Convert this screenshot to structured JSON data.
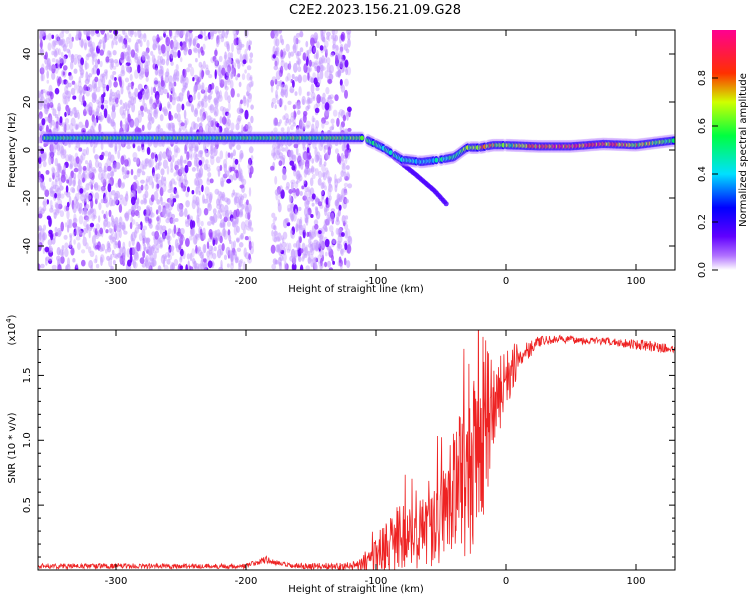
{
  "title": "C2E2.2023.156.21.09.G28",
  "chart_data": [
    {
      "type": "heatmap",
      "xlabel": "Height of straight line (km)",
      "ylabel": "Frequency (Hz)",
      "xlim": [
        -360,
        130
      ],
      "ylim": [
        -50,
        50
      ],
      "x_ticks": [
        -300,
        -200,
        -100,
        0,
        100
      ],
      "y_ticks": [
        -40,
        -20,
        0,
        20,
        40
      ],
      "colorbar": {
        "label": "Normalized spectral amplitude",
        "range": [
          0,
          1
        ],
        "ticks": [
          "0.0",
          "0.2",
          "0.4",
          "0.6",
          "0.8"
        ],
        "colors": [
          "#ffffff",
          "#8000ff",
          "#0000ff",
          "#00ffff",
          "#00ff00",
          "#ffff00",
          "#ff0000",
          "#ff00a0"
        ]
      },
      "noise_regions_km": [
        [
          -360,
          -195
        ],
        [
          -180,
          -120
        ]
      ],
      "ridge": {
        "x": [
          -355,
          -300,
          -250,
          -200,
          -150,
          -110,
          -95,
          -80,
          -65,
          -50,
          -40,
          -30,
          -20,
          -10,
          0,
          25,
          50,
          75,
          100,
          130
        ],
        "freq": [
          5,
          5,
          5,
          5,
          5,
          5,
          1,
          -4,
          -5,
          -4,
          -3,
          1,
          1,
          2,
          2,
          1.5,
          1.5,
          2.5,
          2,
          4
        ],
        "amplitude": [
          0.55,
          0.55,
          0.55,
          0.55,
          0.6,
          0.6,
          0.5,
          0.45,
          0.4,
          0.45,
          0.5,
          0.6,
          0.8,
          0.7,
          0.6,
          0.85,
          0.9,
          0.85,
          0.75,
          0.5
        ]
      },
      "branch": {
        "x": [
          -100,
          -70,
          -55,
          -45
        ],
        "freq": [
          3,
          -10,
          -17,
          -23
        ]
      }
    },
    {
      "type": "line",
      "xlabel": "Height of straight line (km)",
      "ylabel": "SNR (10 * v/v)",
      "y_scale_label": "(x10",
      "y_scale_exp": "4",
      "xlim": [
        -360,
        130
      ],
      "ylim": [
        0,
        18500
      ],
      "x_ticks": [
        -300,
        -200,
        -100,
        0,
        100
      ],
      "y_tick_labels": [
        "0.5",
        "1.0",
        "1.5"
      ],
      "y_tick_values": [
        5000,
        10000,
        15000
      ],
      "color": "#ee2222",
      "envelope": {
        "x": [
          -360,
          -200,
          -185,
          -175,
          -165,
          -120,
          -105,
          -95,
          -85,
          -75,
          -60,
          -50,
          -40,
          -30,
          -20,
          -15,
          -10,
          0,
          10,
          25,
          40,
          60,
          80,
          100,
          115,
          130
        ],
        "base": [
          300,
          300,
          800,
          500,
          300,
          300,
          600,
          1500,
          2000,
          2500,
          3000,
          4000,
          6000,
          7000,
          9000,
          11000,
          12500,
          14500,
          16500,
          17600,
          17800,
          17700,
          17600,
          17400,
          17200,
          17000
        ],
        "noise": [
          200,
          200,
          300,
          200,
          200,
          300,
          800,
          2000,
          3000,
          2500,
          3000,
          3500,
          5000,
          6000,
          7000,
          7000,
          3500,
          2500,
          1200,
          400,
          300,
          300,
          300,
          400,
          400,
          300
        ]
      }
    }
  ]
}
